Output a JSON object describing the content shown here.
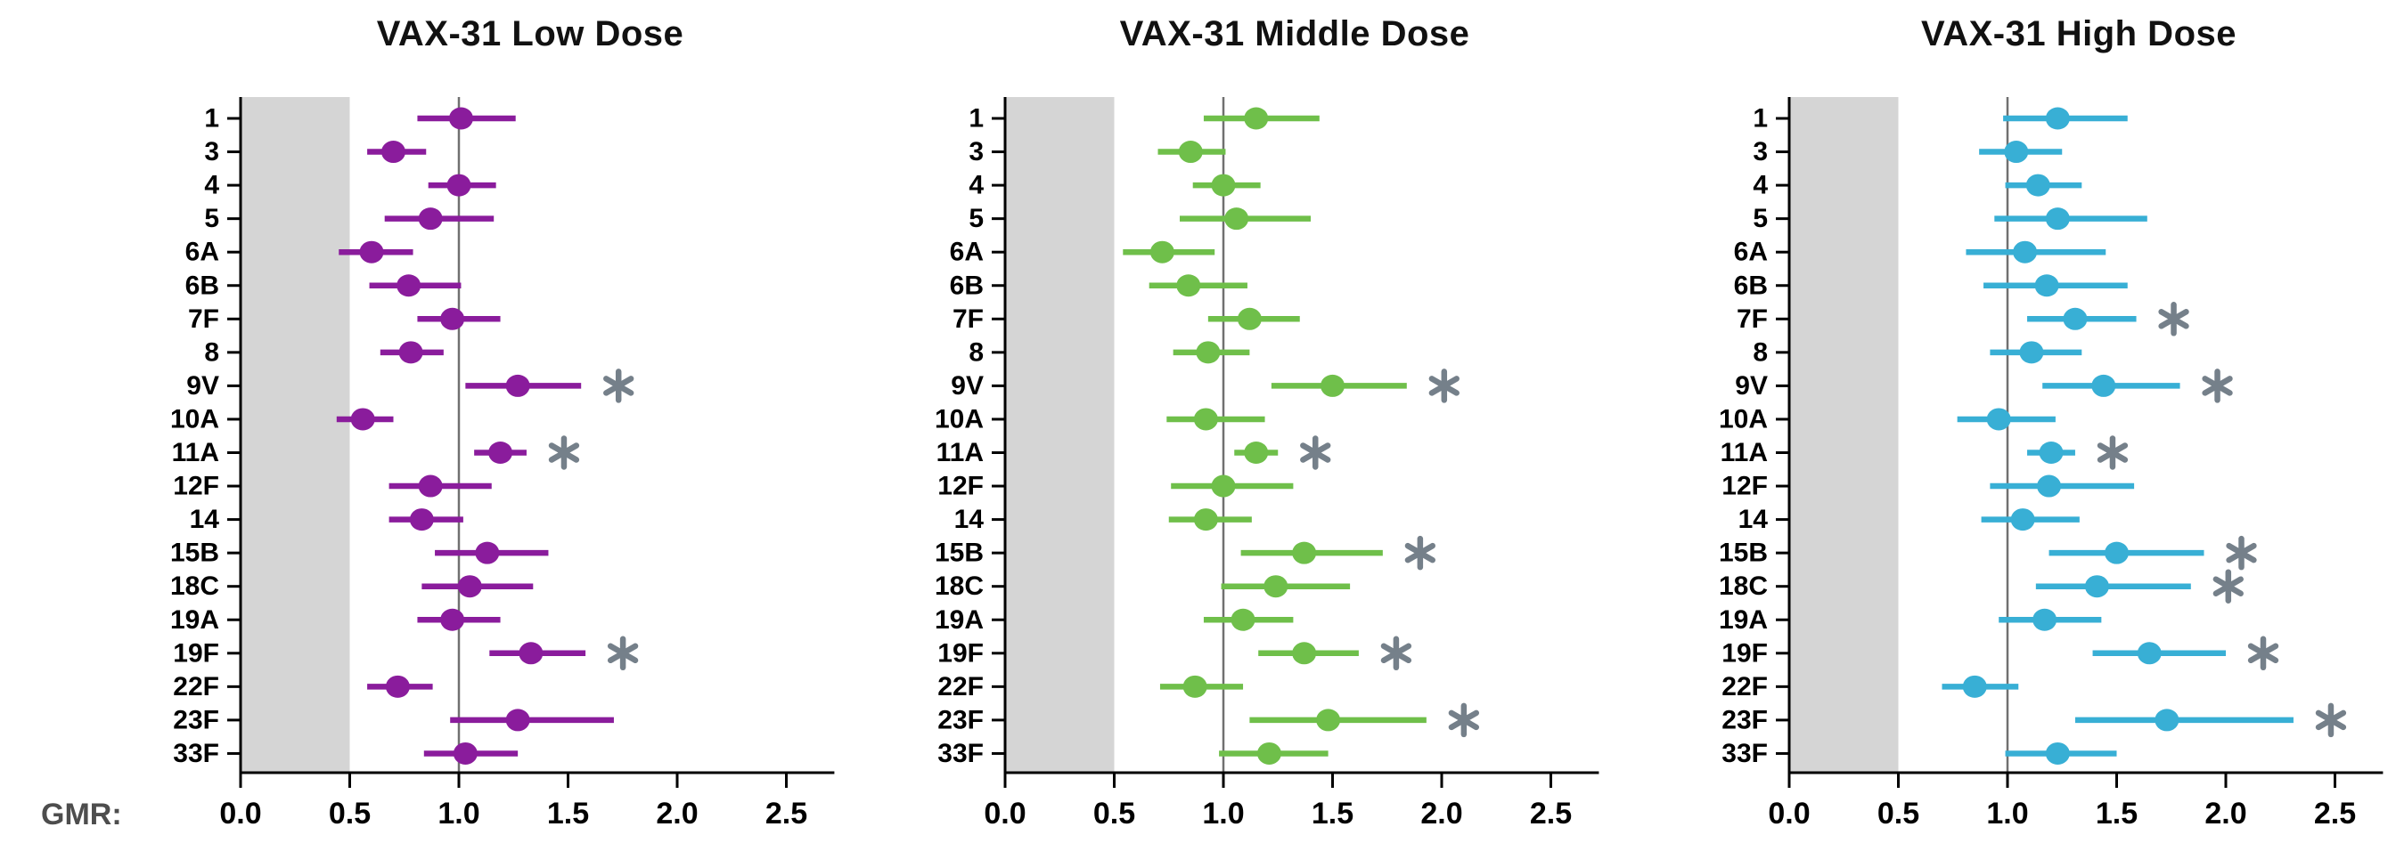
{
  "figure": {
    "gmr_axis_label": "GMR:",
    "categories": [
      "1",
      "3",
      "4",
      "5",
      "6A",
      "6B",
      "7F",
      "8",
      "9V",
      "10A",
      "11A",
      "12F",
      "14",
      "15B",
      "18C",
      "19A",
      "19F",
      "22F",
      "23F",
      "33F"
    ],
    "x_tick_labels": [
      "0.0",
      "0.5",
      "1.0",
      "1.5",
      "2.0",
      "2.5"
    ]
  },
  "colors": {
    "low_dose": "#8A1C9C",
    "middle_dose": "#6FBF4A",
    "high_dose": "#38AFD5",
    "shaded_band": "#D5D5D5",
    "reference_line": "#707070",
    "asterisk": "#75808A",
    "axis": "#000000",
    "gmr_label": "#4D4D4D",
    "title": "#111111"
  },
  "chart_data": [
    {
      "type": "scatter",
      "subtype": "forest-dot-ci",
      "title": "VAX-31 Low Dose",
      "color": "#8A1C9C",
      "xlabel": "GMR:",
      "xlim": [
        0,
        2.72
      ],
      "x_ticks": [
        0,
        0.5,
        1.0,
        1.5,
        2.0,
        2.5
      ],
      "reference_line": 1.0,
      "shaded_region": [
        0,
        0.5
      ],
      "grid": false,
      "legend_position": "none",
      "points": [
        {
          "serotype": "1",
          "gmr": 1.01,
          "ci_low": 0.81,
          "ci_high": 1.26,
          "significant": false
        },
        {
          "serotype": "3",
          "gmr": 0.7,
          "ci_low": 0.58,
          "ci_high": 0.85,
          "significant": false
        },
        {
          "serotype": "4",
          "gmr": 1.0,
          "ci_low": 0.86,
          "ci_high": 1.17,
          "significant": false
        },
        {
          "serotype": "5",
          "gmr": 0.87,
          "ci_low": 0.66,
          "ci_high": 1.16,
          "significant": false
        },
        {
          "serotype": "6A",
          "gmr": 0.6,
          "ci_low": 0.45,
          "ci_high": 0.79,
          "significant": false
        },
        {
          "serotype": "6B",
          "gmr": 0.77,
          "ci_low": 0.59,
          "ci_high": 1.01,
          "significant": false
        },
        {
          "serotype": "7F",
          "gmr": 0.97,
          "ci_low": 0.81,
          "ci_high": 1.19,
          "significant": false
        },
        {
          "serotype": "8",
          "gmr": 0.78,
          "ci_low": 0.64,
          "ci_high": 0.93,
          "significant": false
        },
        {
          "serotype": "9V",
          "gmr": 1.27,
          "ci_low": 1.03,
          "ci_high": 1.56,
          "significant": true
        },
        {
          "serotype": "10A",
          "gmr": 0.56,
          "ci_low": 0.44,
          "ci_high": 0.7,
          "significant": false
        },
        {
          "serotype": "11A",
          "gmr": 1.19,
          "ci_low": 1.07,
          "ci_high": 1.31,
          "significant": true
        },
        {
          "serotype": "12F",
          "gmr": 0.87,
          "ci_low": 0.68,
          "ci_high": 1.15,
          "significant": false
        },
        {
          "serotype": "14",
          "gmr": 0.83,
          "ci_low": 0.68,
          "ci_high": 1.02,
          "significant": false
        },
        {
          "serotype": "15B",
          "gmr": 1.13,
          "ci_low": 0.89,
          "ci_high": 1.41,
          "significant": false
        },
        {
          "serotype": "18C",
          "gmr": 1.05,
          "ci_low": 0.83,
          "ci_high": 1.34,
          "significant": false
        },
        {
          "serotype": "19A",
          "gmr": 0.97,
          "ci_low": 0.81,
          "ci_high": 1.19,
          "significant": false
        },
        {
          "serotype": "19F",
          "gmr": 1.33,
          "ci_low": 1.14,
          "ci_high": 1.58,
          "significant": true
        },
        {
          "serotype": "22F",
          "gmr": 0.72,
          "ci_low": 0.58,
          "ci_high": 0.88,
          "significant": false
        },
        {
          "serotype": "23F",
          "gmr": 1.27,
          "ci_low": 0.96,
          "ci_high": 1.71,
          "significant": false
        },
        {
          "serotype": "33F",
          "gmr": 1.03,
          "ci_low": 0.84,
          "ci_high": 1.27,
          "significant": false
        }
      ]
    },
    {
      "type": "scatter",
      "subtype": "forest-dot-ci",
      "title": "VAX-31 Middle Dose",
      "color": "#6FBF4A",
      "xlabel": "GMR:",
      "xlim": [
        0,
        2.72
      ],
      "x_ticks": [
        0,
        0.5,
        1.0,
        1.5,
        2.0,
        2.5
      ],
      "reference_line": 1.0,
      "shaded_region": [
        0,
        0.5
      ],
      "grid": false,
      "legend_position": "none",
      "points": [
        {
          "serotype": "1",
          "gmr": 1.15,
          "ci_low": 0.91,
          "ci_high": 1.44,
          "significant": false
        },
        {
          "serotype": "3",
          "gmr": 0.85,
          "ci_low": 0.7,
          "ci_high": 1.01,
          "significant": false
        },
        {
          "serotype": "4",
          "gmr": 1.0,
          "ci_low": 0.86,
          "ci_high": 1.17,
          "significant": false
        },
        {
          "serotype": "5",
          "gmr": 1.06,
          "ci_low": 0.8,
          "ci_high": 1.4,
          "significant": false
        },
        {
          "serotype": "6A",
          "gmr": 0.72,
          "ci_low": 0.54,
          "ci_high": 0.96,
          "significant": false
        },
        {
          "serotype": "6B",
          "gmr": 0.84,
          "ci_low": 0.66,
          "ci_high": 1.11,
          "significant": false
        },
        {
          "serotype": "7F",
          "gmr": 1.12,
          "ci_low": 0.93,
          "ci_high": 1.35,
          "significant": false
        },
        {
          "serotype": "8",
          "gmr": 0.93,
          "ci_low": 0.77,
          "ci_high": 1.12,
          "significant": false
        },
        {
          "serotype": "9V",
          "gmr": 1.5,
          "ci_low": 1.22,
          "ci_high": 1.84,
          "significant": true
        },
        {
          "serotype": "10A",
          "gmr": 0.92,
          "ci_low": 0.74,
          "ci_high": 1.19,
          "significant": false
        },
        {
          "serotype": "11A",
          "gmr": 1.15,
          "ci_low": 1.05,
          "ci_high": 1.25,
          "significant": true
        },
        {
          "serotype": "12F",
          "gmr": 1.0,
          "ci_low": 0.76,
          "ci_high": 1.32,
          "significant": false
        },
        {
          "serotype": "14",
          "gmr": 0.92,
          "ci_low": 0.75,
          "ci_high": 1.13,
          "significant": false
        },
        {
          "serotype": "15B",
          "gmr": 1.37,
          "ci_low": 1.08,
          "ci_high": 1.73,
          "significant": true
        },
        {
          "serotype": "18C",
          "gmr": 1.24,
          "ci_low": 0.99,
          "ci_high": 1.58,
          "significant": false
        },
        {
          "serotype": "19A",
          "gmr": 1.09,
          "ci_low": 0.91,
          "ci_high": 1.32,
          "significant": false
        },
        {
          "serotype": "19F",
          "gmr": 1.37,
          "ci_low": 1.16,
          "ci_high": 1.62,
          "significant": true
        },
        {
          "serotype": "22F",
          "gmr": 0.87,
          "ci_low": 0.71,
          "ci_high": 1.09,
          "significant": false
        },
        {
          "serotype": "23F",
          "gmr": 1.48,
          "ci_low": 1.12,
          "ci_high": 1.93,
          "significant": true
        },
        {
          "serotype": "33F",
          "gmr": 1.21,
          "ci_low": 0.98,
          "ci_high": 1.48,
          "significant": false
        }
      ]
    },
    {
      "type": "scatter",
      "subtype": "forest-dot-ci",
      "title": "VAX-31 High Dose",
      "color": "#38AFD5",
      "xlabel": "GMR:",
      "xlim": [
        0,
        2.72
      ],
      "x_ticks": [
        0,
        0.5,
        1.0,
        1.5,
        2.0,
        2.5
      ],
      "reference_line": 1.0,
      "shaded_region": [
        0,
        0.5
      ],
      "grid": false,
      "legend_position": "none",
      "points": [
        {
          "serotype": "1",
          "gmr": 1.23,
          "ci_low": 0.98,
          "ci_high": 1.55,
          "significant": false
        },
        {
          "serotype": "3",
          "gmr": 1.04,
          "ci_low": 0.87,
          "ci_high": 1.25,
          "significant": false
        },
        {
          "serotype": "4",
          "gmr": 1.14,
          "ci_low": 0.99,
          "ci_high": 1.34,
          "significant": false
        },
        {
          "serotype": "5",
          "gmr": 1.23,
          "ci_low": 0.94,
          "ci_high": 1.64,
          "significant": false
        },
        {
          "serotype": "6A",
          "gmr": 1.08,
          "ci_low": 0.81,
          "ci_high": 1.45,
          "significant": false
        },
        {
          "serotype": "6B",
          "gmr": 1.18,
          "ci_low": 0.89,
          "ci_high": 1.55,
          "significant": false
        },
        {
          "serotype": "7F",
          "gmr": 1.31,
          "ci_low": 1.09,
          "ci_high": 1.59,
          "significant": true
        },
        {
          "serotype": "8",
          "gmr": 1.11,
          "ci_low": 0.92,
          "ci_high": 1.34,
          "significant": false
        },
        {
          "serotype": "9V",
          "gmr": 1.44,
          "ci_low": 1.16,
          "ci_high": 1.79,
          "significant": true
        },
        {
          "serotype": "10A",
          "gmr": 0.96,
          "ci_low": 0.77,
          "ci_high": 1.22,
          "significant": false
        },
        {
          "serotype": "11A",
          "gmr": 1.2,
          "ci_low": 1.09,
          "ci_high": 1.31,
          "significant": true
        },
        {
          "serotype": "12F",
          "gmr": 1.19,
          "ci_low": 0.92,
          "ci_high": 1.58,
          "significant": false
        },
        {
          "serotype": "14",
          "gmr": 1.07,
          "ci_low": 0.88,
          "ci_high": 1.33,
          "significant": false
        },
        {
          "serotype": "15B",
          "gmr": 1.5,
          "ci_low": 1.19,
          "ci_high": 1.9,
          "significant": true
        },
        {
          "serotype": "18C",
          "gmr": 1.41,
          "ci_low": 1.13,
          "ci_high": 1.84,
          "significant": true
        },
        {
          "serotype": "19A",
          "gmr": 1.17,
          "ci_low": 0.96,
          "ci_high": 1.43,
          "significant": false
        },
        {
          "serotype": "19F",
          "gmr": 1.65,
          "ci_low": 1.39,
          "ci_high": 2.0,
          "significant": true
        },
        {
          "serotype": "22F",
          "gmr": 0.85,
          "ci_low": 0.7,
          "ci_high": 1.05,
          "significant": false
        },
        {
          "serotype": "23F",
          "gmr": 1.73,
          "ci_low": 1.31,
          "ci_high": 2.31,
          "significant": true
        },
        {
          "serotype": "33F",
          "gmr": 1.23,
          "ci_low": 0.99,
          "ci_high": 1.5,
          "significant": false
        }
      ]
    }
  ]
}
